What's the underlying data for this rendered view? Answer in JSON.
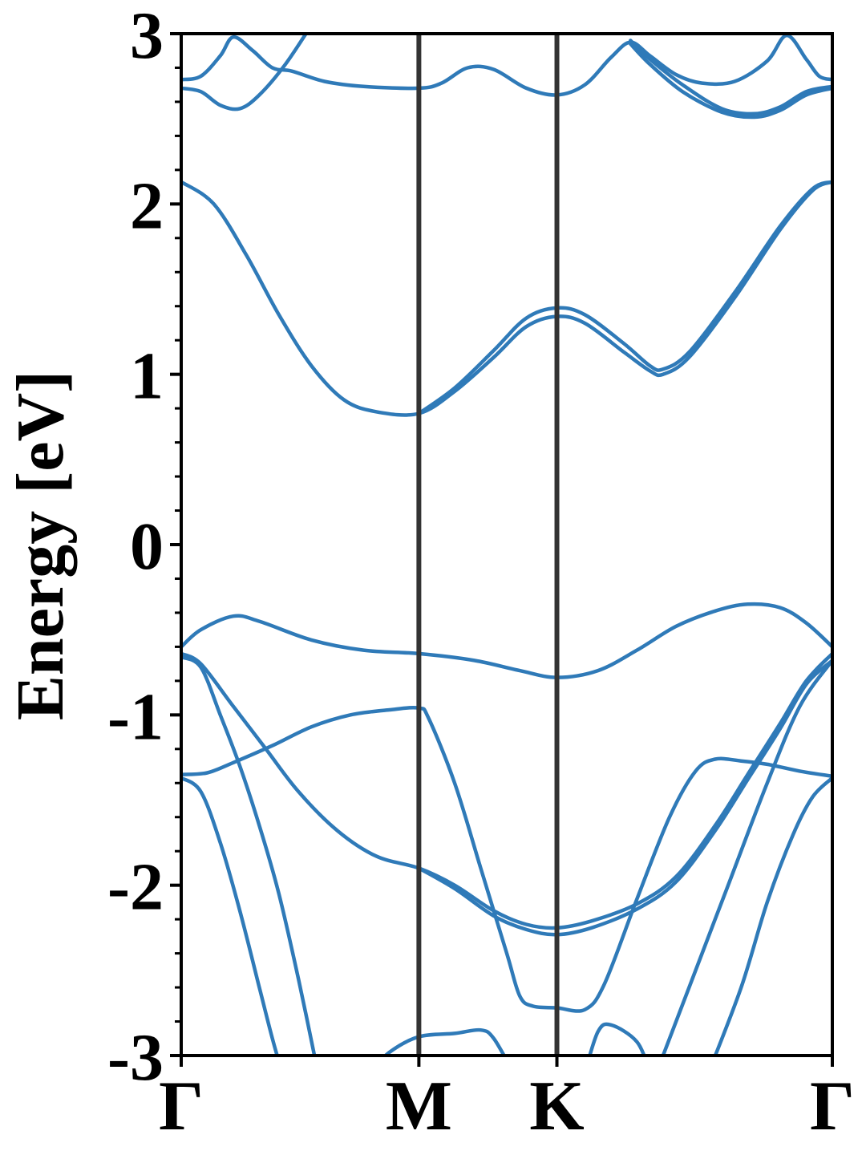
{
  "chart_data": {
    "type": "line",
    "title": "",
    "xlabel": "",
    "ylabel": "Energy [eV]",
    "ylim": [
      -3,
      3
    ],
    "xlim": [
      0,
      1
    ],
    "grid": false,
    "legend": "none",
    "y_ticks": [
      -3,
      -2,
      -1,
      0,
      1,
      2,
      3
    ],
    "y_tick_labels": [
      "-3",
      "-2",
      "-1",
      "0",
      "1",
      "2",
      "3"
    ],
    "y_minor_step": 0.2,
    "high_symmetry_points": [
      {
        "label": "Γ",
        "x": 0.0
      },
      {
        "label": "M",
        "x": 0.365
      },
      {
        "label": "K",
        "x": 0.577
      },
      {
        "label": "Γ",
        "x": 1.0
      }
    ],
    "colors": {
      "band": "#2f7ab8",
      "divider": "#333333",
      "axis": "#000000"
    },
    "series": [
      {
        "values": [
          [
            0,
            2.13
          ],
          [
            0.05,
            2.0
          ],
          [
            0.1,
            1.7
          ],
          [
            0.15,
            1.35
          ],
          [
            0.2,
            1.05
          ],
          [
            0.25,
            0.85
          ],
          [
            0.3,
            0.78
          ],
          [
            0.365,
            0.77
          ],
          [
            0.42,
            0.9
          ],
          [
            0.48,
            1.1
          ],
          [
            0.53,
            1.28
          ],
          [
            0.577,
            1.34
          ],
          [
            0.62,
            1.3
          ],
          [
            0.68,
            1.13
          ],
          [
            0.72,
            1.02
          ],
          [
            0.74,
            1.0
          ],
          [
            0.78,
            1.1
          ],
          [
            0.85,
            1.45
          ],
          [
            0.92,
            1.85
          ],
          [
            0.97,
            2.08
          ],
          [
            1.0,
            2.13
          ]
        ]
      },
      {
        "values": [
          [
            0.365,
            0.77
          ],
          [
            0.42,
            0.92
          ],
          [
            0.48,
            1.14
          ],
          [
            0.53,
            1.33
          ],
          [
            0.577,
            1.39
          ],
          [
            0.62,
            1.35
          ],
          [
            0.68,
            1.18
          ],
          [
            0.72,
            1.05
          ],
          [
            0.74,
            1.03
          ],
          [
            0.78,
            1.13
          ],
          [
            0.85,
            1.48
          ],
          [
            0.92,
            1.87
          ],
          [
            0.97,
            2.09
          ],
          [
            1.0,
            2.13
          ]
        ]
      },
      {
        "values": [
          [
            0,
            -0.6
          ],
          [
            0.03,
            -0.5
          ],
          [
            0.08,
            -0.42
          ],
          [
            0.12,
            -0.45
          ],
          [
            0.2,
            -0.56
          ],
          [
            0.28,
            -0.62
          ],
          [
            0.365,
            -0.64
          ],
          [
            0.45,
            -0.68
          ],
          [
            0.52,
            -0.74
          ],
          [
            0.577,
            -0.78
          ],
          [
            0.64,
            -0.74
          ],
          [
            0.7,
            -0.62
          ],
          [
            0.76,
            -0.48
          ],
          [
            0.82,
            -0.39
          ],
          [
            0.87,
            -0.35
          ],
          [
            0.92,
            -0.37
          ],
          [
            0.96,
            -0.46
          ],
          [
            1.0,
            -0.6
          ]
        ]
      },
      {
        "values": [
          [
            0,
            -0.64
          ],
          [
            0.03,
            -0.7
          ],
          [
            0.08,
            -0.95
          ],
          [
            0.13,
            -1.2
          ],
          [
            0.18,
            -1.45
          ],
          [
            0.24,
            -1.68
          ],
          [
            0.3,
            -1.83
          ],
          [
            0.365,
            -1.9
          ],
          [
            0.42,
            -2.0
          ],
          [
            0.48,
            -2.15
          ],
          [
            0.53,
            -2.23
          ],
          [
            0.577,
            -2.25
          ],
          [
            0.63,
            -2.21
          ],
          [
            0.7,
            -2.11
          ],
          [
            0.76,
            -1.95
          ],
          [
            0.82,
            -1.65
          ],
          [
            0.87,
            -1.35
          ],
          [
            0.92,
            -1.05
          ],
          [
            0.96,
            -0.8
          ],
          [
            1.0,
            -0.64
          ]
        ]
      },
      {
        "values": [
          [
            0.365,
            -1.9
          ],
          [
            0.42,
            -2.02
          ],
          [
            0.48,
            -2.18
          ],
          [
            0.53,
            -2.26
          ],
          [
            0.577,
            -2.29
          ],
          [
            0.63,
            -2.25
          ],
          [
            0.7,
            -2.14
          ],
          [
            0.76,
            -1.98
          ],
          [
            0.82,
            -1.68
          ],
          [
            0.87,
            -1.38
          ],
          [
            0.92,
            -1.08
          ],
          [
            0.96,
            -0.82
          ],
          [
            1.0,
            -0.68
          ]
        ]
      },
      {
        "values": [
          [
            0,
            -1.35
          ],
          [
            0.04,
            -1.34
          ],
          [
            0.08,
            -1.28
          ],
          [
            0.14,
            -1.18
          ],
          [
            0.2,
            -1.07
          ],
          [
            0.26,
            -1.0
          ],
          [
            0.32,
            -0.97
          ],
          [
            0.365,
            -0.96
          ],
          [
            0.38,
            -1.02
          ],
          [
            0.42,
            -1.4
          ],
          [
            0.46,
            -1.9
          ],
          [
            0.5,
            -2.4
          ],
          [
            0.52,
            -2.65
          ],
          [
            0.54,
            -2.71
          ],
          [
            0.577,
            -2.72
          ],
          [
            0.62,
            -2.73
          ],
          [
            0.65,
            -2.58
          ],
          [
            0.7,
            -2.08
          ],
          [
            0.75,
            -1.6
          ],
          [
            0.79,
            -1.33
          ],
          [
            0.82,
            -1.26
          ],
          [
            0.86,
            -1.27
          ],
          [
            0.9,
            -1.29
          ],
          [
            0.95,
            -1.33
          ],
          [
            1.0,
            -1.36
          ]
        ]
      },
      {
        "values": [
          [
            0,
            -0.66
          ],
          [
            0.03,
            -0.72
          ],
          [
            0.06,
            -1.0
          ],
          [
            0.09,
            -1.3
          ],
          [
            0.12,
            -1.65
          ],
          [
            0.15,
            -2.05
          ],
          [
            0.18,
            -2.55
          ],
          [
            0.21,
            -3.1
          ]
        ]
      },
      {
        "values": [
          [
            0,
            -1.37
          ],
          [
            0.03,
            -1.45
          ],
          [
            0.06,
            -1.75
          ],
          [
            0.09,
            -2.15
          ],
          [
            0.12,
            -2.6
          ],
          [
            0.14,
            -2.9
          ],
          [
            0.155,
            -3.1
          ]
        ]
      },
      {
        "values": [
          [
            0.29,
            -3.1
          ],
          [
            0.32,
            -2.98
          ],
          [
            0.365,
            -2.89
          ],
          [
            0.42,
            -2.87
          ],
          [
            0.46,
            -2.85
          ],
          [
            0.48,
            -2.9
          ],
          [
            0.51,
            -3.1
          ]
        ]
      },
      {
        "values": [
          [
            0.62,
            -3.1
          ],
          [
            0.64,
            -2.86
          ],
          [
            0.66,
            -2.82
          ],
          [
            0.7,
            -2.92
          ],
          [
            0.72,
            -3.1
          ]
        ]
      },
      {
        "values": [
          [
            0.73,
            -3.1
          ],
          [
            0.78,
            -2.6
          ],
          [
            0.84,
            -2.0
          ],
          [
            0.9,
            -1.4
          ],
          [
            0.95,
            -0.95
          ],
          [
            1.0,
            -0.68
          ]
        ]
      },
      {
        "values": [
          [
            0.81,
            -3.1
          ],
          [
            0.86,
            -2.6
          ],
          [
            0.9,
            -2.1
          ],
          [
            0.94,
            -1.7
          ],
          [
            0.97,
            -1.48
          ],
          [
            1.0,
            -1.37
          ]
        ]
      },
      {
        "values": [
          [
            0,
            2.68
          ],
          [
            0.03,
            2.66
          ],
          [
            0.06,
            2.58
          ],
          [
            0.09,
            2.56
          ],
          [
            0.12,
            2.64
          ],
          [
            0.16,
            2.82
          ],
          [
            0.2,
            3.05
          ]
        ]
      },
      {
        "values": [
          [
            0,
            2.73
          ],
          [
            0.03,
            2.75
          ],
          [
            0.06,
            2.87
          ],
          [
            0.08,
            2.98
          ],
          [
            0.11,
            2.9
          ],
          [
            0.14,
            2.8
          ],
          [
            0.17,
            2.78
          ],
          [
            0.22,
            2.72
          ],
          [
            0.28,
            2.69
          ],
          [
            0.365,
            2.68
          ],
          [
            0.4,
            2.71
          ],
          [
            0.44,
            2.8
          ],
          [
            0.48,
            2.79
          ],
          [
            0.53,
            2.68
          ],
          [
            0.577,
            2.64
          ],
          [
            0.62,
            2.7
          ],
          [
            0.66,
            2.86
          ],
          [
            0.69,
            2.95
          ],
          [
            0.72,
            2.87
          ],
          [
            0.76,
            2.76
          ],
          [
            0.8,
            2.71
          ],
          [
            0.85,
            2.72
          ],
          [
            0.9,
            2.84
          ],
          [
            0.93,
            2.99
          ],
          [
            0.96,
            2.85
          ],
          [
            0.98,
            2.75
          ],
          [
            1.0,
            2.73
          ]
        ]
      },
      {
        "values": [
          [
            0.69,
            2.94
          ],
          [
            0.72,
            2.82
          ],
          [
            0.77,
            2.66
          ],
          [
            0.83,
            2.54
          ],
          [
            0.88,
            2.51
          ],
          [
            0.92,
            2.55
          ],
          [
            0.96,
            2.64
          ],
          [
            1.0,
            2.68
          ]
        ]
      },
      {
        "values": [
          [
            0.69,
            2.96
          ],
          [
            0.72,
            2.85
          ],
          [
            0.77,
            2.7
          ],
          [
            0.83,
            2.56
          ],
          [
            0.88,
            2.53
          ],
          [
            0.92,
            2.57
          ],
          [
            0.96,
            2.66
          ],
          [
            1.0,
            2.69
          ]
        ]
      }
    ]
  }
}
